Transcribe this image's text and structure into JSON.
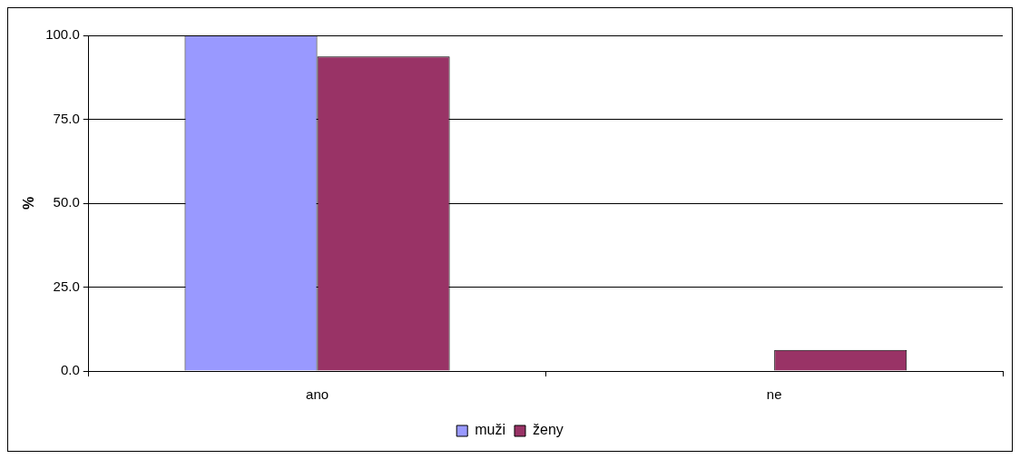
{
  "chart_data": {
    "type": "bar",
    "ylabel": "%",
    "categories": [
      "ano",
      "ne"
    ],
    "series": [
      {
        "name": "muži",
        "color": "#9999ff",
        "values": [
          100,
          0
        ]
      },
      {
        "name": "ženy",
        "color": "#993366",
        "values": [
          93.7,
          6.3
        ]
      }
    ],
    "ylim": [
      0,
      100
    ],
    "yticks": [
      {
        "value": 0,
        "label": "0.0"
      },
      {
        "value": 25,
        "label": "25.0"
      },
      {
        "value": 50,
        "label": "50.0"
      },
      {
        "value": 75,
        "label": "75.0"
      },
      {
        "value": 100,
        "label": "100.0"
      }
    ],
    "grid": "y",
    "legend": "bottom"
  }
}
